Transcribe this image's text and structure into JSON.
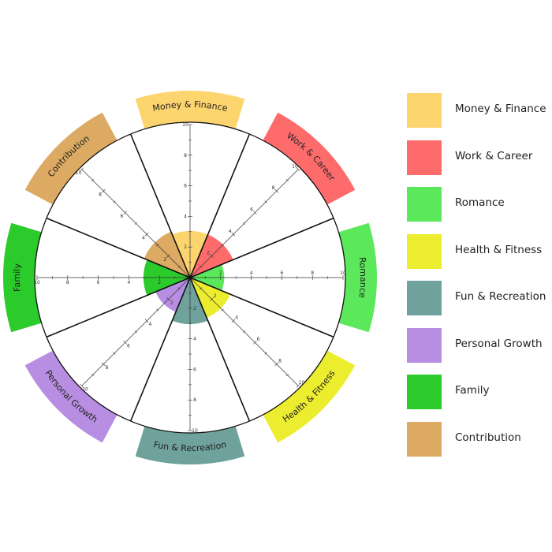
{
  "chart_data": {
    "type": "polar-area",
    "title": "",
    "scale_max": 10,
    "scale_tick_labels": [
      "2",
      "4",
      "6",
      "8",
      "10"
    ],
    "grid": true,
    "legend_placement": "right",
    "categories": [
      {
        "name": "Money & Finance",
        "value": 3,
        "color": "#FDD56E"
      },
      {
        "name": "Work & Career",
        "value": 3,
        "color": "#FE6B6B"
      },
      {
        "name": "Romance",
        "value": 2.2,
        "color": "#5BE85B"
      },
      {
        "name": "Health & Fitness",
        "value": 2.8,
        "color": "#EDED2F"
      },
      {
        "name": "Fun & Recreation",
        "value": 3,
        "color": "#6FA19D"
      },
      {
        "name": "Personal Growth",
        "value": 2.4,
        "color": "#B88EE2"
      },
      {
        "name": "Family",
        "value": 3,
        "color": "#2ACB2A"
      },
      {
        "name": "Contribution",
        "value": 3.2,
        "color": "#DCAA62"
      }
    ]
  },
  "legend": {
    "items": [
      {
        "label": "Money & Finance",
        "color": "#FDD56E"
      },
      {
        "label": "Work & Career",
        "color": "#FE6B6B"
      },
      {
        "label": "Romance",
        "color": "#5BE85B"
      },
      {
        "label": "Health & Fitness",
        "color": "#EDED2F"
      },
      {
        "label": "Fun & Recreation",
        "color": "#6FA19D"
      },
      {
        "label": "Personal Growth",
        "color": "#B88EE2"
      },
      {
        "label": "Family",
        "color": "#2ACB2A"
      },
      {
        "label": "Contribution",
        "color": "#DCAA62"
      }
    ]
  }
}
